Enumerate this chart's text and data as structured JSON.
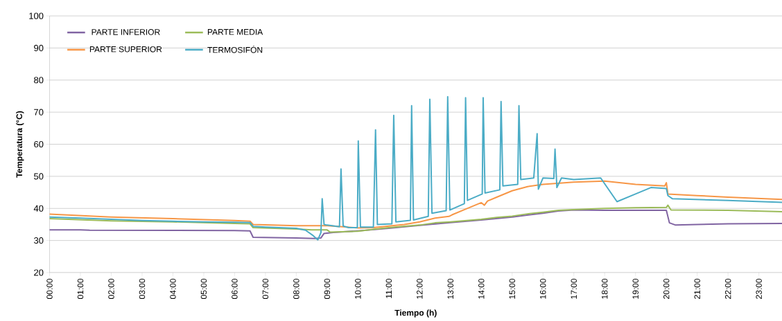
{
  "chart_data": {
    "type": "line",
    "xlabel": "Tiempo (h)",
    "ylabel": "Temperatura (°C)",
    "xlim": [
      0,
      23.75
    ],
    "ylim": [
      20,
      100
    ],
    "yticks": [
      20,
      30,
      40,
      50,
      60,
      70,
      80,
      90,
      100
    ],
    "xticks": [
      {
        "value": 0,
        "label": "00:00"
      },
      {
        "value": 1,
        "label": "01:00"
      },
      {
        "value": 2,
        "label": "02:00"
      },
      {
        "value": 3,
        "label": "03:00"
      },
      {
        "value": 4,
        "label": "04:00"
      },
      {
        "value": 5,
        "label": "05:00"
      },
      {
        "value": 6,
        "label": "06:00"
      },
      {
        "value": 7,
        "label": "07:00"
      },
      {
        "value": 8,
        "label": "08:00"
      },
      {
        "value": 9,
        "label": "09:00"
      },
      {
        "value": 10,
        "label": "10:00"
      },
      {
        "value": 11,
        "label": "11:00"
      },
      {
        "value": 12,
        "label": "12:00"
      },
      {
        "value": 13,
        "label": "13:00"
      },
      {
        "value": 14,
        "label": "14:00"
      },
      {
        "value": 15,
        "label": "15:00"
      },
      {
        "value": 16,
        "label": "16:00"
      },
      {
        "value": 17,
        "label": "17:00"
      },
      {
        "value": 18,
        "label": "18:00"
      },
      {
        "value": 19,
        "label": "19:00"
      },
      {
        "value": 20,
        "label": "20:00"
      },
      {
        "value": 21,
        "label": "21:00"
      },
      {
        "value": 22,
        "label": "22:00"
      },
      {
        "value": 23,
        "label": "23:00"
      }
    ],
    "grid": "y",
    "legend": "top left",
    "series": [
      {
        "name": "PARTE INFERIOR",
        "color": "#8064a2",
        "x": [
          0,
          1,
          1.3,
          6,
          6.5,
          6.6,
          8,
          8.6,
          8.8,
          8.9,
          9.2,
          10,
          11,
          12,
          13,
          14,
          15,
          16,
          16.5,
          17,
          18,
          19,
          20,
          20.1,
          20.3,
          21,
          22,
          23.75
        ],
        "values": [
          33.3,
          33.3,
          33.2,
          33.1,
          33,
          31,
          30.8,
          30.6,
          30.8,
          32.2,
          32.5,
          33,
          33.8,
          34.7,
          35.6,
          36.4,
          37.3,
          38.5,
          39.2,
          39.5,
          39.4,
          39.4,
          39.4,
          35.5,
          34.8,
          35,
          35.2,
          35.3
        ]
      },
      {
        "name": "PARTE MEDIA",
        "color": "#9bbb59",
        "x": [
          0,
          2,
          4,
          6,
          6.5,
          6.6,
          8,
          8.5,
          9,
          9.1,
          10,
          10.5,
          11,
          12,
          12.5,
          13,
          13.5,
          14,
          14.5,
          15,
          15.5,
          16,
          16.5,
          17,
          18,
          19,
          20,
          20.05,
          20.15,
          22,
          23.75
        ],
        "values": [
          36.8,
          36.1,
          35.8,
          35.3,
          35.2,
          34,
          33.6,
          33.3,
          33.3,
          32.6,
          32.9,
          33.5,
          34,
          34.8,
          35.5,
          35.8,
          36.2,
          36.6,
          37.2,
          37.6,
          38.3,
          38.8,
          39.4,
          39.6,
          40,
          40.2,
          40.3,
          41,
          39.5,
          39.4,
          39
        ]
      },
      {
        "name": "PARTE SUPERIOR",
        "color": "#f79646",
        "x": [
          0,
          2,
          4,
          6,
          6.5,
          6.6,
          8,
          9,
          9.5,
          10,
          10.5,
          11,
          11.5,
          12,
          12.5,
          12.95,
          13.05,
          13.5,
          14,
          14.1,
          14.2,
          14.5,
          15,
          15.5,
          16,
          17,
          18,
          19,
          19.95,
          20,
          20.05,
          21,
          22,
          23.75
        ],
        "values": [
          38.2,
          37.3,
          36.8,
          36.2,
          36,
          35,
          34.6,
          34.6,
          34.3,
          33.9,
          34,
          34.5,
          35,
          35.8,
          37,
          37.5,
          38,
          39.8,
          41.8,
          41,
          42.3,
          43.5,
          45.5,
          46.8,
          47.5,
          48.2,
          48.5,
          47.5,
          47,
          48,
          44.5,
          44,
          43.5,
          42.8
        ]
      },
      {
        "name": "TERMOSIFÓN",
        "color": "#4bacc6",
        "x": [
          0,
          1,
          2,
          3,
          4,
          5,
          6,
          6.5,
          6.6,
          7,
          8,
          8.3,
          8.55,
          8.7,
          8.8,
          8.84,
          8.9,
          9,
          9.4,
          9.45,
          9.52,
          9.7,
          9.98,
          10.01,
          10.08,
          10.5,
          10.57,
          10.63,
          11.1,
          11.16,
          11.23,
          11.7,
          11.74,
          11.8,
          12.28,
          12.33,
          12.4,
          12.86,
          12.91,
          12.98,
          13.45,
          13.49,
          13.55,
          14.03,
          14.06,
          14.12,
          14.6,
          14.64,
          14.7,
          15.18,
          15.22,
          15.28,
          15.7,
          15.81,
          15.85,
          16,
          16.35,
          16.39,
          16.45,
          16.6,
          17,
          17.87,
          18.4,
          19,
          19.5,
          20,
          20.05,
          20.2,
          22,
          23.75
        ],
        "values": [
          37.3,
          37,
          36.6,
          36.2,
          36,
          35.8,
          35.7,
          35.6,
          34.4,
          34.2,
          33.8,
          33.2,
          31.5,
          30.2,
          32.5,
          43,
          35,
          34.8,
          34.3,
          52.3,
          34.5,
          34,
          34,
          61,
          34.2,
          34.2,
          64.5,
          35,
          35.2,
          69,
          35.8,
          36.3,
          72,
          36.4,
          37.5,
          74,
          38.5,
          39.3,
          74.8,
          39.5,
          41.5,
          74.5,
          42.5,
          44.5,
          74.5,
          44.8,
          45.8,
          73.3,
          47,
          47.5,
          72,
          49,
          49.5,
          63.3,
          46,
          49.5,
          49.3,
          58.5,
          46.5,
          49.5,
          49,
          49.5,
          42.1,
          44.5,
          46.5,
          46.2,
          44,
          43,
          42.5,
          41.9
        ]
      }
    ]
  }
}
